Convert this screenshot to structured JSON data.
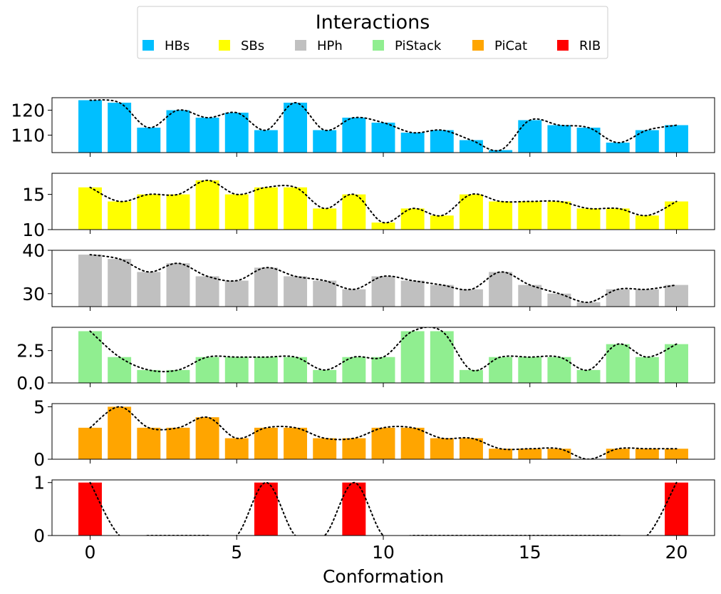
{
  "legend": {
    "title": "Interactions",
    "items": [
      {
        "label": "HBs",
        "color": "#00BFFF"
      },
      {
        "label": "SBs",
        "color": "#FFFF00"
      },
      {
        "label": "HPh",
        "color": "#C0C0C0"
      },
      {
        "label": "PiStack",
        "color": "#90EE90"
      },
      {
        "label": "PiCat",
        "color": "#FFA500"
      },
      {
        "label": "RIB",
        "color": "#FF0000"
      }
    ]
  },
  "chart_data": {
    "type": "bar",
    "xlabel": "Conformation",
    "xlim": [
      -1.3,
      21.3
    ],
    "x_ticks": [
      0,
      5,
      10,
      15,
      20
    ],
    "categories": [
      0,
      1,
      2,
      3,
      4,
      5,
      6,
      7,
      8,
      9,
      10,
      11,
      12,
      13,
      14,
      15,
      16,
      17,
      18,
      19,
      20
    ],
    "line_style": "dotted black",
    "series": [
      {
        "name": "HBs",
        "color": "#00BFFF",
        "ylim": [
          103,
          125
        ],
        "y_ticks": [
          110,
          120
        ],
        "values": [
          124,
          123,
          113,
          120,
          117,
          119,
          112,
          123,
          112,
          117,
          115,
          111,
          112,
          108,
          104,
          116,
          114,
          113,
          107,
          112,
          114
        ]
      },
      {
        "name": "SBs",
        "color": "#FFFF00",
        "ylim": [
          10,
          18
        ],
        "y_ticks": [
          10,
          15
        ],
        "values": [
          16,
          14,
          15,
          15,
          17,
          15,
          16,
          16,
          13,
          15,
          11,
          13,
          12,
          15,
          14,
          14,
          14,
          13,
          13,
          12,
          14
        ]
      },
      {
        "name": "HPh",
        "color": "#C0C0C0",
        "ylim": [
          27,
          40
        ],
        "y_ticks": [
          30,
          40
        ],
        "values": [
          39,
          38,
          35,
          37,
          34,
          33,
          36,
          34,
          33,
          31,
          34,
          33,
          32,
          31,
          35,
          32,
          30,
          28,
          31,
          31,
          32
        ]
      },
      {
        "name": "PiStack",
        "color": "#90EE90",
        "ylim": [
          0,
          4.3
        ],
        "y_ticks": [
          0.0,
          2.5
        ],
        "tick_decimals": 1,
        "values": [
          4,
          2,
          1,
          1,
          2,
          2,
          2,
          2,
          1,
          2,
          2,
          4,
          4,
          1,
          2,
          2,
          2,
          1,
          3,
          2,
          3
        ]
      },
      {
        "name": "PiCat",
        "color": "#FFA500",
        "ylim": [
          0,
          5.3
        ],
        "y_ticks": [
          0,
          5
        ],
        "values": [
          3,
          5,
          3,
          3,
          4,
          2,
          3,
          3,
          2,
          2,
          3,
          3,
          2,
          2,
          1,
          1,
          1,
          0,
          1,
          1,
          1
        ]
      },
      {
        "name": "RIB",
        "color": "#FF0000",
        "ylim": [
          0,
          1.05
        ],
        "y_ticks": [
          0,
          1
        ],
        "values": [
          1,
          0,
          0,
          0,
          0,
          0,
          1,
          0,
          0,
          1,
          0,
          0,
          0,
          0,
          0,
          0,
          0,
          0,
          0,
          0,
          1
        ]
      }
    ]
  }
}
